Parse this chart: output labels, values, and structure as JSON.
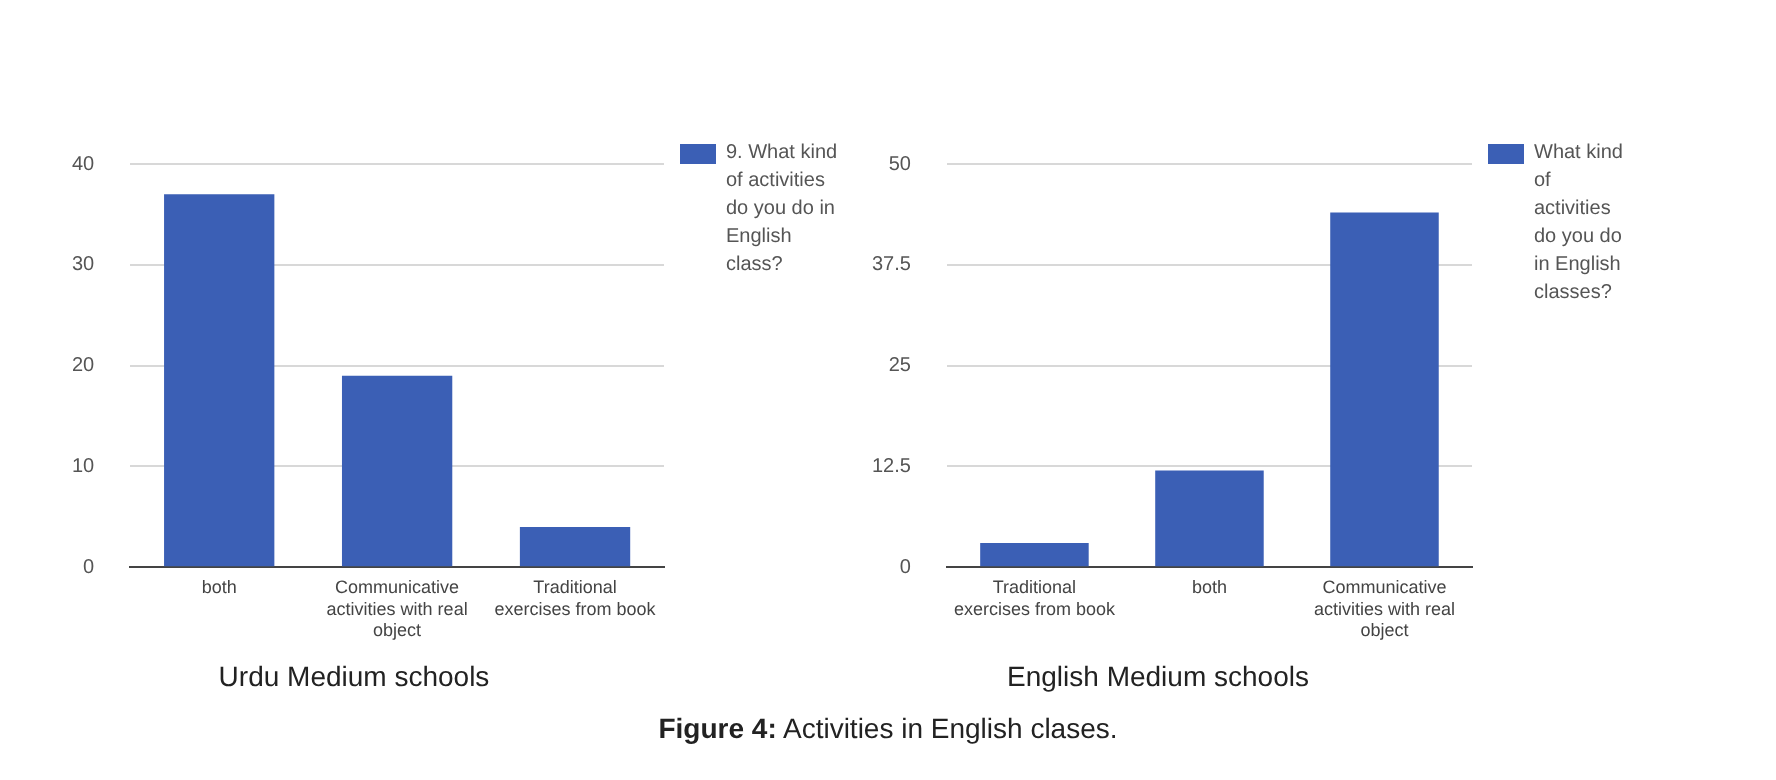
{
  "chart_data": [
    {
      "type": "bar",
      "xlabel": "Urdu Medium schools",
      "categories": [
        "both",
        "Communicative activities with real object",
        "Traditional exercises from book"
      ],
      "series": [
        {
          "name": "9. What kind of activities do you do in English class?",
          "color": "#3b5fb5",
          "values": [
            37,
            19,
            4
          ]
        }
      ],
      "ylim": [
        0,
        40
      ],
      "yticks": [
        0,
        10,
        20,
        30,
        40
      ],
      "grid": "y",
      "legend": "right",
      "annotations": [
        "Figure 4: Activities in English clases."
      ]
    },
    {
      "type": "bar",
      "xlabel": "English Medium schools",
      "categories": [
        "Traditional exercises from book",
        "both",
        "Communicative activities with real object"
      ],
      "series": [
        {
          "name": "What kind of activities do you do in English classes?",
          "color": "#3b5fb5",
          "values": [
            3,
            12,
            44
          ]
        }
      ],
      "ylim": [
        0,
        50
      ],
      "yticks": [
        0,
        12.5,
        25,
        37.5,
        50
      ],
      "grid": "y",
      "legend": "right"
    }
  ]
}
